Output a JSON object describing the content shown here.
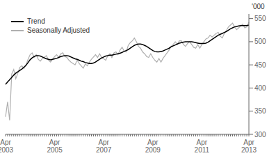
{
  "chart_data": {
    "type": "line",
    "y_label": "'000",
    "categories": [
      "Apr\n2003",
      null,
      null,
      null,
      null,
      null,
      null,
      null,
      null,
      null,
      null,
      null,
      null,
      null,
      null,
      null,
      null,
      null,
      null,
      null,
      null,
      null,
      null,
      null,
      "Apr\n2005",
      null,
      null,
      null,
      null,
      null,
      null,
      null,
      null,
      null,
      null,
      null,
      null,
      null,
      null,
      null,
      null,
      null,
      null,
      null,
      null,
      null,
      null,
      null,
      "Apr\n2007",
      null,
      null,
      null,
      null,
      null,
      null,
      null,
      null,
      null,
      null,
      null,
      null,
      null,
      null,
      null,
      null,
      null,
      null,
      null,
      null,
      null,
      null,
      null,
      "Apr\n2009",
      null,
      null,
      null,
      null,
      null,
      null,
      null,
      null,
      null,
      null,
      null,
      null,
      null,
      null,
      null,
      null,
      null,
      null,
      null,
      null,
      null,
      null,
      null,
      "Apr\n2011",
      null,
      null,
      null,
      null,
      null,
      null,
      null,
      null,
      null,
      null,
      null,
      null,
      null,
      null,
      null,
      null,
      null,
      null,
      null,
      null,
      null,
      null,
      "Apr\n2013"
    ],
    "series": [
      {
        "name": "Seasonally Adjusted",
        "color": "#b0b0b0",
        "values": [
          338,
          370,
          330,
          430,
          440,
          420,
          432,
          445,
          448,
          442,
          450,
          462,
          472,
          476,
          466,
          472,
          462,
          458,
          464,
          467,
          470,
          460,
          456,
          462,
          468,
          472,
          466,
          474,
          476,
          468,
          466,
          460,
          456,
          453,
          450,
          460,
          453,
          448,
          443,
          452,
          448,
          456,
          462,
          467,
          472,
          466,
          474,
          466,
          463,
          460,
          470,
          474,
          466,
          476,
          478,
          472,
          482,
          488,
          480,
          478,
          492,
          498,
          502,
          508,
          500,
          490,
          486,
          478,
          474,
          468,
          466,
          474,
          466,
          460,
          456,
          464,
          456,
          464,
          470,
          476,
          482,
          490,
          494,
          500,
          494,
          502,
          502,
          494,
          490,
          496,
          500,
          494,
          488,
          486,
          494,
          486,
          494,
          500,
          506,
          508,
          514,
          510,
          514,
          518,
          520,
          512,
          508,
          518,
          524,
          532,
          536,
          540,
          532,
          526,
          530,
          534,
          538,
          530,
          532,
          542
        ]
      },
      {
        "name": "Trend",
        "color": "#000000",
        "values": [
          408,
          413,
          418,
          423,
          428,
          432,
          435,
          438,
          441,
          445,
          449,
          455,
          461,
          465,
          468,
          470,
          470,
          469,
          467,
          465,
          463,
          462,
          461,
          462,
          463,
          464,
          466,
          468,
          469,
          470,
          470,
          469,
          467,
          465,
          463,
          462,
          460,
          458,
          457,
          455,
          454,
          453,
          453,
          454,
          456,
          459,
          462,
          465,
          467,
          469,
          470,
          471,
          471,
          472,
          473,
          474,
          475,
          477,
          479,
          481,
          483,
          486,
          489,
          492,
          494,
          495,
          495,
          494,
          492,
          490,
          487,
          484,
          481,
          479,
          478,
          478,
          479,
          480,
          482,
          484,
          486,
          489,
          491,
          493,
          495,
          497,
          498,
          499,
          500,
          500,
          500,
          500,
          499,
          498,
          497,
          496,
          496,
          496,
          497,
          499,
          502,
          505,
          508,
          511,
          514,
          516,
          518,
          520,
          522,
          525,
          528,
          530,
          532,
          533,
          534,
          535,
          535,
          535,
          535,
          536
        ]
      }
    ],
    "ylim": [
      300,
      560
    ],
    "yticks": [
      300,
      350,
      400,
      450,
      500,
      550
    ],
    "grid": false,
    "legend": "upper left"
  }
}
